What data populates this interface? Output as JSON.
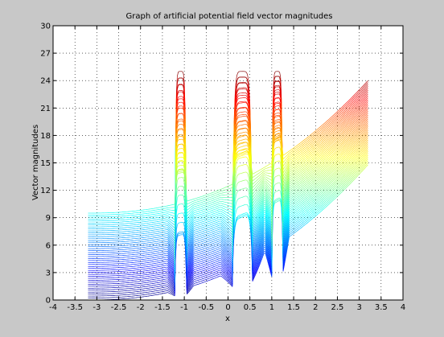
{
  "chart_data": {
    "type": "line",
    "title": "Graph of artificial potential field vector magnitudes",
    "xlabel": "x",
    "ylabel": "Vector magnitudes",
    "xlim": [
      -4,
      4
    ],
    "ylim": [
      0,
      30
    ],
    "xticks": [
      -4,
      -3.5,
      -3,
      -2.5,
      -2,
      -1.5,
      -1,
      -0.5,
      0,
      0.5,
      1,
      1.5,
      2,
      2.5,
      3,
      3.5,
      4
    ],
    "xtick_labels": [
      "-4",
      "-3.5",
      "-3",
      "-2.5",
      "-2",
      "-1.5",
      "-1",
      "-0.5",
      "0",
      "0.5",
      "1",
      "1.5",
      "2",
      "2.5",
      "3",
      "3.5",
      "4"
    ],
    "yticks": [
      0,
      3,
      6,
      9,
      12,
      15,
      18,
      21,
      24,
      27,
      30
    ],
    "ytick_labels": [
      "0",
      "3",
      "6",
      "9",
      "12",
      "15",
      "18",
      "21",
      "24",
      "27",
      "30"
    ],
    "grid": true,
    "grid_style": "dotted",
    "colormap": "jet",
    "x_range": [
      -3.2,
      3.2
    ],
    "series_count": 45,
    "magnitude_cap": 25,
    "series_y_offset": {
      "near": 0.0,
      "far": 9.5
    },
    "series_right_end": {
      "near": 14.8,
      "far": 24
    },
    "obstacles": [
      {
        "x_min": -1.22,
        "x_max": -0.95,
        "peak": 25
      },
      {
        "x_min": 0.1,
        "x_max": 0.55,
        "peak": 25
      },
      {
        "x_min": 1.0,
        "x_max": 1.25,
        "peak": 25
      }
    ],
    "colors": {
      "figure_background": "#c8c8c8",
      "axes_background": "#ffffff",
      "axes_line": "#000000"
    }
  }
}
